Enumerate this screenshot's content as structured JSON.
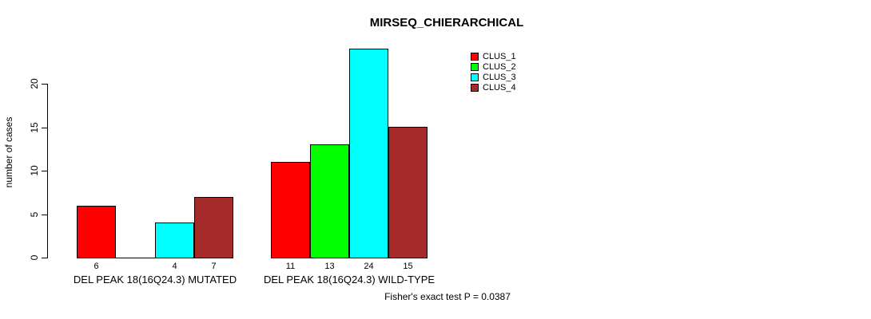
{
  "chart_data": {
    "type": "bar",
    "title": "MIRSEQ_CHIERARCHICAL",
    "ylabel": "number of cases",
    "xlabel": "",
    "ylim": [
      0,
      24
    ],
    "yticks": [
      0,
      5,
      10,
      15,
      20
    ],
    "grid": false,
    "legend_position": "top-right",
    "categories": [
      "DEL PEAK 18(16Q24.3) MUTATED",
      "DEL PEAK 18(16Q24.3) WILD-TYPE"
    ],
    "series": [
      {
        "name": "CLUS_1",
        "color": "#ff0000",
        "values": [
          6,
          11
        ]
      },
      {
        "name": "CLUS_2",
        "color": "#00ff00",
        "values": [
          0,
          13
        ]
      },
      {
        "name": "CLUS_3",
        "color": "#00ffff",
        "values": [
          4,
          24
        ]
      },
      {
        "name": "CLUS_4",
        "color": "#a52a2a",
        "values": [
          7,
          15
        ]
      }
    ],
    "bar_value_labels": {
      "shown": true,
      "zero_values_hidden": true
    },
    "annotation": "Fisher's exact test P = 0.0387"
  }
}
